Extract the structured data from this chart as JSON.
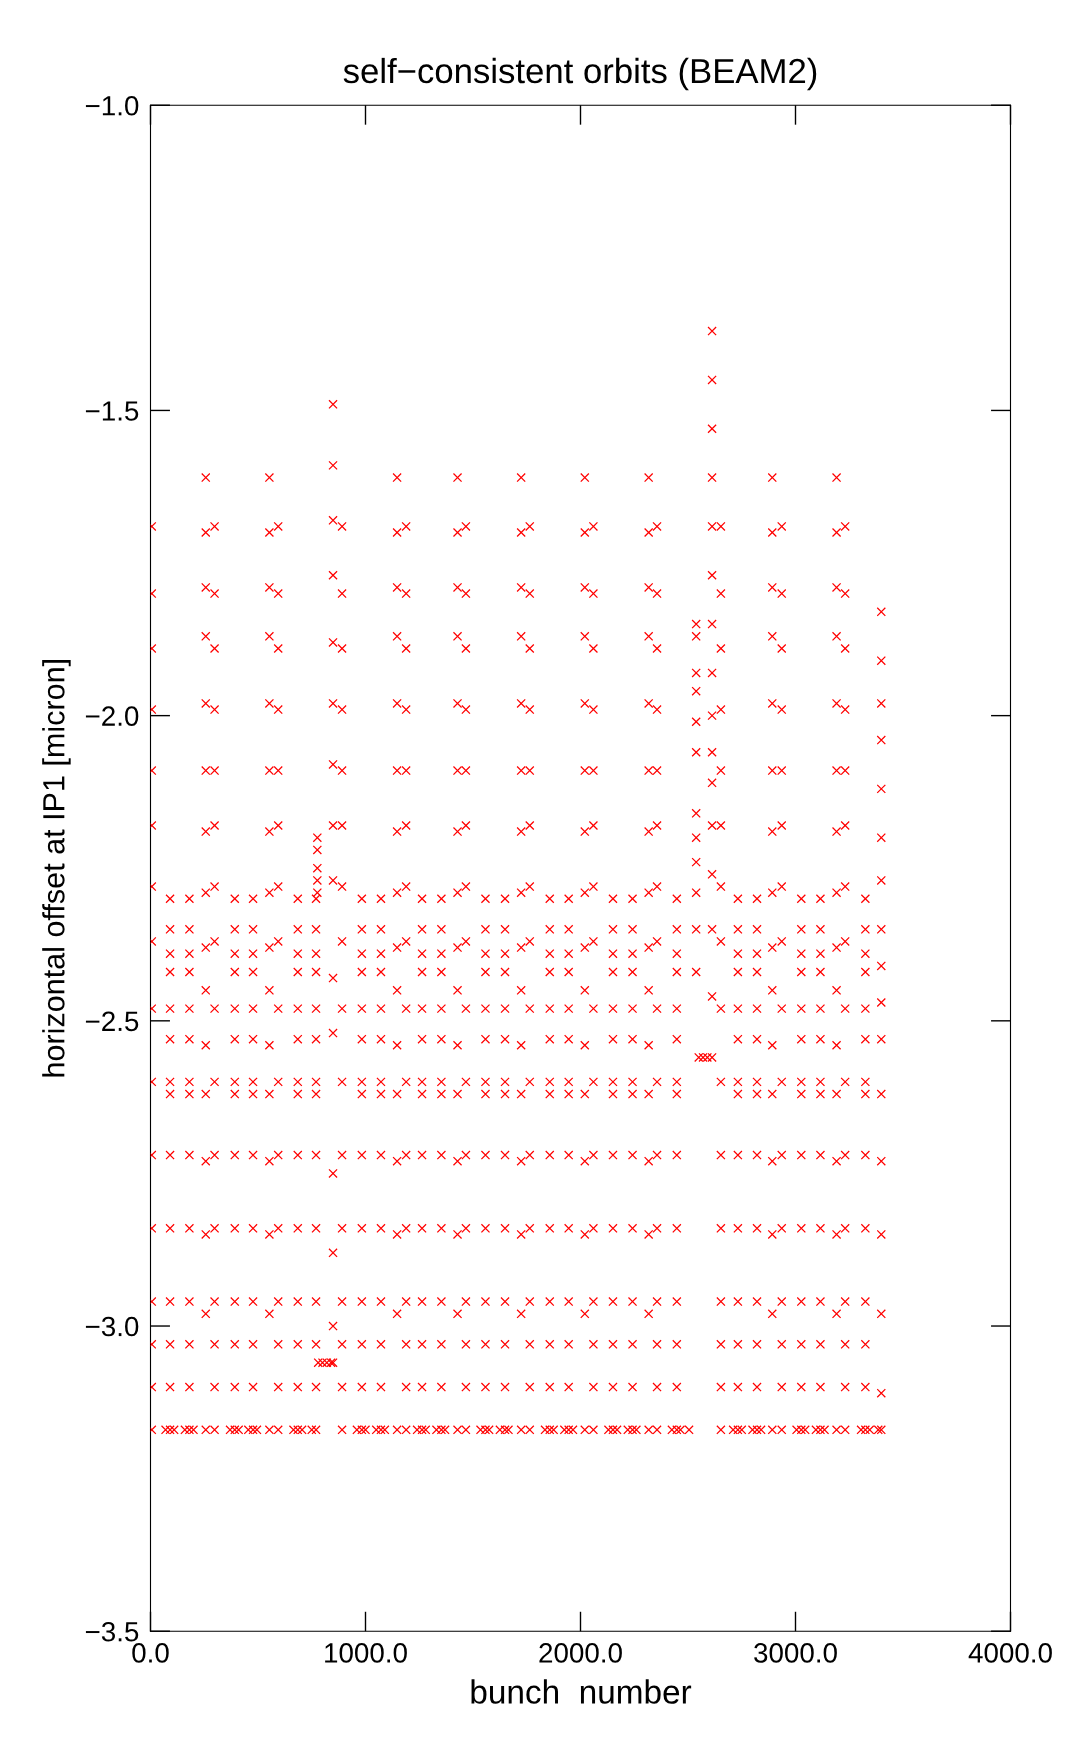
{
  "chart_data": {
    "type": "scatter",
    "title": "self−consistent orbits (BEAM2)",
    "xlabel": "bunch  number",
    "ylabel": "horizontal offset at IP1 [micron]",
    "marker": "cross",
    "xlim": [
      0,
      4000
    ],
    "ylim": [
      -3.5,
      -1.0
    ],
    "xticks": [
      {
        "value": 0,
        "label": "0.0"
      },
      {
        "value": 1000,
        "label": "1000.0"
      },
      {
        "value": 2000,
        "label": "2000.0"
      },
      {
        "value": 3000,
        "label": "3000.0"
      },
      {
        "value": 4000,
        "label": "4000.0"
      }
    ],
    "yticks": [
      {
        "value": -3.5,
        "label": "−3.5"
      },
      {
        "value": -3.0,
        "label": "−3.0"
      },
      {
        "value": -2.5,
        "label": "−2.5"
      },
      {
        "value": -2.0,
        "label": "−2.0"
      },
      {
        "value": -1.5,
        "label": "−1.5"
      },
      {
        "value": -1.0,
        "label": "−1.0"
      }
    ],
    "series": [
      {
        "color": "#ff0000",
        "x": [
          6,
          6,
          6,
          6,
          6,
          6,
          6,
          6,
          6,
          6,
          6,
          6,
          6,
          6,
          6,
          6
        ],
        "values": [
          -1.69,
          -1.8,
          -1.89,
          -1.99,
          -2.09,
          -2.18,
          -2.28,
          -2.37,
          -2.48,
          -2.6,
          -2.72,
          -2.84,
          -2.96,
          -3.03,
          -3.1,
          -3.17
        ]
      },
      {
        "color": "#ff0000",
        "x": [
          257,
          257,
          257,
          257,
          257,
          257,
          257,
          257,
          257,
          257,
          257,
          257,
          257,
          257,
          257,
          257
        ],
        "values": [
          -1.61,
          -1.7,
          -1.79,
          -1.87,
          -1.98,
          -2.09,
          -2.19,
          -2.29,
          -2.38,
          -2.45,
          -2.54,
          -2.62,
          -2.73,
          -2.85,
          -2.98,
          -3.17
        ]
      },
      {
        "color": "#ff0000",
        "x": [
          298,
          298,
          298,
          298,
          298,
          298,
          298,
          298,
          298,
          298,
          298,
          298,
          298,
          298,
          298,
          298
        ],
        "values": [
          -1.69,
          -1.8,
          -1.89,
          -1.99,
          -2.09,
          -2.18,
          -2.28,
          -2.37,
          -2.48,
          -2.6,
          -2.72,
          -2.84,
          -2.96,
          -3.03,
          -3.1,
          -3.17
        ]
      },
      {
        "color": "#ff0000",
        "x": [
          553,
          553,
          553,
          553,
          553,
          553,
          553,
          553,
          553,
          553,
          553,
          553,
          553,
          553,
          553,
          553
        ],
        "values": [
          -1.61,
          -1.7,
          -1.79,
          -1.87,
          -1.98,
          -2.09,
          -2.19,
          -2.29,
          -2.38,
          -2.45,
          -2.54,
          -2.62,
          -2.73,
          -2.85,
          -2.98,
          -3.17
        ]
      },
      {
        "color": "#ff0000",
        "x": [
          594,
          594,
          594,
          594,
          594,
          594,
          594,
          594,
          594,
          594,
          594,
          594,
          594,
          594,
          594,
          594
        ],
        "values": [
          -1.69,
          -1.8,
          -1.89,
          -1.99,
          -2.09,
          -2.18,
          -2.28,
          -2.37,
          -2.48,
          -2.6,
          -2.72,
          -2.84,
          -2.96,
          -3.03,
          -3.1,
          -3.17
        ]
      },
      {
        "color": "#ff0000",
        "x": [
          849,
          849,
          849,
          849,
          849,
          849,
          849,
          849,
          849,
          849,
          849,
          849,
          849,
          849,
          849
        ],
        "values": [
          -1.49,
          -1.59,
          -1.68,
          -1.77,
          -1.88,
          -1.98,
          -2.08,
          -2.18,
          -2.27,
          -2.43,
          -2.52,
          -2.75,
          -2.88,
          -3.0,
          -3.06
        ]
      },
      {
        "color": "#ff0000",
        "x": [
          776,
          776,
          776,
          776,
          776,
          780,
          800,
          820,
          840
        ],
        "values": [
          -2.2,
          -2.22,
          -2.25,
          -2.27,
          -2.29,
          -3.06,
          -3.06,
          -3.06,
          -3.06
        ]
      },
      {
        "color": "#ff0000",
        "x": [
          891,
          891,
          891,
          891,
          891,
          891,
          891,
          891,
          891,
          891,
          891,
          891,
          891,
          891,
          891,
          891
        ],
        "values": [
          -1.69,
          -1.8,
          -1.89,
          -1.99,
          -2.09,
          -2.18,
          -2.28,
          -2.37,
          -2.48,
          -2.6,
          -2.72,
          -2.84,
          -2.96,
          -3.03,
          -3.1,
          -3.17
        ]
      },
      {
        "color": "#ff0000",
        "x": [
          1147,
          1147,
          1147,
          1147,
          1147,
          1147,
          1147,
          1147,
          1147,
          1147,
          1147,
          1147,
          1147,
          1147,
          1147,
          1147
        ],
        "values": [
          -1.61,
          -1.7,
          -1.79,
          -1.87,
          -1.98,
          -2.09,
          -2.19,
          -2.29,
          -2.38,
          -2.45,
          -2.54,
          -2.62,
          -2.73,
          -2.85,
          -2.98,
          -3.17
        ]
      },
      {
        "color": "#ff0000",
        "x": [
          1189,
          1189,
          1189,
          1189,
          1189,
          1189,
          1189,
          1189,
          1189,
          1189,
          1189,
          1189,
          1189,
          1189,
          1189,
          1189
        ],
        "values": [
          -1.69,
          -1.8,
          -1.89,
          -1.99,
          -2.09,
          -2.18,
          -2.28,
          -2.37,
          -2.48,
          -2.6,
          -2.72,
          -2.84,
          -2.96,
          -3.03,
          -3.1,
          -3.17
        ]
      },
      {
        "color": "#ff0000",
        "x": [
          1428,
          1428,
          1428,
          1428,
          1428,
          1428,
          1428,
          1428,
          1428,
          1428,
          1428,
          1428,
          1428,
          1428,
          1428,
          1428
        ],
        "values": [
          -1.61,
          -1.7,
          -1.79,
          -1.87,
          -1.98,
          -2.09,
          -2.19,
          -2.29,
          -2.38,
          -2.45,
          -2.54,
          -2.62,
          -2.73,
          -2.85,
          -2.98,
          -3.17
        ]
      },
      {
        "color": "#ff0000",
        "x": [
          1467,
          1467,
          1467,
          1467,
          1467,
          1467,
          1467,
          1467,
          1467,
          1467,
          1467,
          1467,
          1467,
          1467,
          1467,
          1467
        ],
        "values": [
          -1.69,
          -1.8,
          -1.89,
          -1.99,
          -2.09,
          -2.18,
          -2.28,
          -2.37,
          -2.48,
          -2.6,
          -2.72,
          -2.84,
          -2.96,
          -3.03,
          -3.1,
          -3.17
        ]
      },
      {
        "color": "#ff0000",
        "x": [
          1724,
          1724,
          1724,
          1724,
          1724,
          1724,
          1724,
          1724,
          1724,
          1724,
          1724,
          1724,
          1724,
          1724,
          1724,
          1724
        ],
        "values": [
          -1.61,
          -1.7,
          -1.79,
          -1.87,
          -1.98,
          -2.09,
          -2.19,
          -2.29,
          -2.38,
          -2.45,
          -2.54,
          -2.62,
          -2.73,
          -2.85,
          -2.98,
          -3.17
        ]
      },
      {
        "color": "#ff0000",
        "x": [
          1764,
          1764,
          1764,
          1764,
          1764,
          1764,
          1764,
          1764,
          1764,
          1764,
          1764,
          1764,
          1764,
          1764,
          1764,
          1764
        ],
        "values": [
          -1.69,
          -1.8,
          -1.89,
          -1.99,
          -2.09,
          -2.18,
          -2.28,
          -2.37,
          -2.48,
          -2.6,
          -2.72,
          -2.84,
          -2.96,
          -3.03,
          -3.1,
          -3.17
        ]
      },
      {
        "color": "#ff0000",
        "x": [
          2020,
          2020,
          2020,
          2020,
          2020,
          2020,
          2020,
          2020,
          2020,
          2020,
          2020,
          2020,
          2020,
          2020,
          2020,
          2020
        ],
        "values": [
          -1.61,
          -1.7,
          -1.79,
          -1.87,
          -1.98,
          -2.09,
          -2.19,
          -2.29,
          -2.38,
          -2.45,
          -2.54,
          -2.62,
          -2.73,
          -2.85,
          -2.98,
          -3.17
        ]
      },
      {
        "color": "#ff0000",
        "x": [
          2060,
          2060,
          2060,
          2060,
          2060,
          2060,
          2060,
          2060,
          2060,
          2060,
          2060,
          2060,
          2060,
          2060,
          2060,
          2060
        ],
        "values": [
          -1.69,
          -1.8,
          -1.89,
          -1.99,
          -2.09,
          -2.18,
          -2.28,
          -2.37,
          -2.48,
          -2.6,
          -2.72,
          -2.84,
          -2.96,
          -3.03,
          -3.1,
          -3.17
        ]
      },
      {
        "color": "#ff0000",
        "x": [
          2317,
          2317,
          2317,
          2317,
          2317,
          2317,
          2317,
          2317,
          2317,
          2317,
          2317,
          2317,
          2317,
          2317,
          2317,
          2317
        ],
        "values": [
          -1.61,
          -1.7,
          -1.79,
          -1.87,
          -1.98,
          -2.09,
          -2.19,
          -2.29,
          -2.38,
          -2.45,
          -2.54,
          -2.62,
          -2.73,
          -2.85,
          -2.98,
          -3.17
        ]
      },
      {
        "color": "#ff0000",
        "x": [
          2356,
          2356,
          2356,
          2356,
          2356,
          2356,
          2356,
          2356,
          2356,
          2356,
          2356,
          2356,
          2356,
          2356,
          2356,
          2356
        ],
        "values": [
          -1.69,
          -1.8,
          -1.89,
          -1.99,
          -2.09,
          -2.18,
          -2.28,
          -2.37,
          -2.48,
          -2.6,
          -2.72,
          -2.84,
          -2.96,
          -3.03,
          -3.1,
          -3.17
        ]
      },
      {
        "color": "#ff0000",
        "x": [
          2538,
          2538,
          2538,
          2538,
          2538,
          2538,
          2538,
          2538,
          2538,
          2538,
          2538,
          2538
        ],
        "values": [
          -1.85,
          -1.87,
          -1.93,
          -1.96,
          -2.01,
          -2.06,
          -2.16,
          -2.2,
          -2.24,
          -2.29,
          -2.35,
          -2.42
        ]
      },
      {
        "color": "#ff0000",
        "x": [
          2612,
          2612,
          2612,
          2612,
          2612,
          2612,
          2612,
          2612,
          2612,
          2612,
          2612,
          2612,
          2612,
          2612,
          2612,
          2612,
          2550,
          2570,
          2590
        ],
        "values": [
          -1.37,
          -1.45,
          -1.53,
          -1.61,
          -1.69,
          -1.77,
          -1.85,
          -1.93,
          -2.0,
          -2.06,
          -2.11,
          -2.18,
          -2.26,
          -2.35,
          -2.46,
          -2.56,
          -2.56,
          -2.56,
          -2.56
        ]
      },
      {
        "color": "#ff0000",
        "x": [
          2653,
          2653,
          2653,
          2653,
          2653,
          2653,
          2653,
          2653,
          2653,
          2653,
          2653,
          2653,
          2653,
          2653,
          2653,
          2653
        ],
        "values": [
          -1.69,
          -1.8,
          -1.89,
          -1.99,
          -2.09,
          -2.18,
          -2.28,
          -2.37,
          -2.48,
          -2.6,
          -2.72,
          -2.84,
          -2.96,
          -3.03,
          -3.1,
          -3.17
        ]
      },
      {
        "color": "#ff0000",
        "x": [
          2892,
          2892,
          2892,
          2892,
          2892,
          2892,
          2892,
          2892,
          2892,
          2892,
          2892,
          2892,
          2892,
          2892,
          2892,
          2892
        ],
        "values": [
          -1.61,
          -1.7,
          -1.79,
          -1.87,
          -1.98,
          -2.09,
          -2.19,
          -2.29,
          -2.38,
          -2.45,
          -2.54,
          -2.62,
          -2.73,
          -2.85,
          -2.98,
          -3.17
        ]
      },
      {
        "color": "#ff0000",
        "x": [
          2936,
          2936,
          2936,
          2936,
          2936,
          2936,
          2936,
          2936,
          2936,
          2936,
          2936,
          2936,
          2936,
          2936,
          2936,
          2936
        ],
        "values": [
          -1.69,
          -1.8,
          -1.89,
          -1.99,
          -2.09,
          -2.18,
          -2.28,
          -2.37,
          -2.48,
          -2.6,
          -2.72,
          -2.84,
          -2.96,
          -3.03,
          -3.1,
          -3.17
        ]
      },
      {
        "color": "#ff0000",
        "x": [
          3191,
          3191,
          3191,
          3191,
          3191,
          3191,
          3191,
          3191,
          3191,
          3191,
          3191,
          3191,
          3191,
          3191,
          3191,
          3191
        ],
        "values": [
          -1.61,
          -1.7,
          -1.79,
          -1.87,
          -1.98,
          -2.09,
          -2.19,
          -2.29,
          -2.38,
          -2.45,
          -2.54,
          -2.62,
          -2.73,
          -2.85,
          -2.98,
          -3.17
        ]
      },
      {
        "color": "#ff0000",
        "x": [
          3231,
          3231,
          3231,
          3231,
          3231,
          3231,
          3231,
          3231,
          3231,
          3231,
          3231,
          3231,
          3231,
          3231,
          3231,
          3231
        ],
        "values": [
          -1.69,
          -1.8,
          -1.89,
          -1.99,
          -2.09,
          -2.18,
          -2.28,
          -2.37,
          -2.48,
          -2.6,
          -2.72,
          -2.84,
          -2.96,
          -3.03,
          -3.1,
          -3.17
        ]
      },
      {
        "color": "#ff0000",
        "x": [
          3399,
          3399,
          3399,
          3399,
          3399,
          3399,
          3399,
          3399,
          3399,
          3399,
          3399,
          3399,
          3399,
          3399,
          3399,
          3399,
          3399
        ],
        "values": [
          -1.83,
          -1.91,
          -1.98,
          -2.04,
          -2.12,
          -2.2,
          -2.27,
          -2.35,
          -2.41,
          -2.47,
          -2.53,
          -2.62,
          -2.73,
          -2.85,
          -2.98,
          -3.11,
          -3.17
        ]
      },
      {
        "color": "#ff0000",
        "x": [
          91,
          91,
          91,
          91,
          91,
          91,
          91,
          91,
          91,
          91,
          91,
          91,
          91,
          91,
          70,
          110
        ],
        "values": [
          -2.3,
          -2.35,
          -2.39,
          -2.42,
          -2.48,
          -2.53,
          -2.6,
          -2.62,
          -2.72,
          -2.84,
          -2.96,
          -3.03,
          -3.1,
          -3.17,
          -3.17,
          -3.17
        ]
      },
      {
        "color": "#ff0000",
        "x": [
          181,
          181,
          181,
          181,
          181,
          181,
          181,
          181,
          181,
          181,
          181,
          181,
          181,
          181,
          160,
          200
        ],
        "values": [
          -2.3,
          -2.35,
          -2.39,
          -2.42,
          -2.48,
          -2.53,
          -2.6,
          -2.62,
          -2.72,
          -2.84,
          -2.96,
          -3.03,
          -3.1,
          -3.17,
          -3.17,
          -3.17
        ]
      },
      {
        "color": "#ff0000",
        "x": [
          392,
          392,
          392,
          392,
          392,
          392,
          392,
          392,
          392,
          392,
          392,
          392,
          392,
          392,
          370,
          410
        ],
        "values": [
          -2.3,
          -2.35,
          -2.39,
          -2.42,
          -2.48,
          -2.53,
          -2.6,
          -2.62,
          -2.72,
          -2.84,
          -2.96,
          -3.03,
          -3.1,
          -3.17,
          -3.17,
          -3.17
        ]
      },
      {
        "color": "#ff0000",
        "x": [
          477,
          477,
          477,
          477,
          477,
          477,
          477,
          477,
          477,
          477,
          477,
          477,
          477,
          477,
          455,
          495
        ],
        "values": [
          -2.3,
          -2.35,
          -2.39,
          -2.42,
          -2.48,
          -2.53,
          -2.6,
          -2.62,
          -2.72,
          -2.84,
          -2.96,
          -3.03,
          -3.1,
          -3.17,
          -3.17,
          -3.17
        ]
      },
      {
        "color": "#ff0000",
        "x": [
          685,
          685,
          685,
          685,
          685,
          685,
          685,
          685,
          685,
          685,
          685,
          685,
          685,
          685,
          665,
          705
        ],
        "values": [
          -2.3,
          -2.35,
          -2.39,
          -2.42,
          -2.48,
          -2.53,
          -2.6,
          -2.62,
          -2.72,
          -2.84,
          -2.96,
          -3.03,
          -3.1,
          -3.17,
          -3.17,
          -3.17
        ]
      },
      {
        "color": "#ff0000",
        "x": [
          770,
          770,
          770,
          770,
          770,
          770,
          770,
          770,
          770,
          770,
          770,
          770,
          770,
          770,
          750
        ],
        "values": [
          -2.3,
          -2.35,
          -2.39,
          -2.42,
          -2.48,
          -2.53,
          -2.6,
          -2.62,
          -2.72,
          -2.84,
          -2.96,
          -3.03,
          -3.1,
          -3.17,
          -3.17
        ]
      },
      {
        "color": "#ff0000",
        "x": [
          983,
          983,
          983,
          983,
          983,
          983,
          983,
          983,
          983,
          983,
          983,
          983,
          983,
          983,
          960,
          1000
        ],
        "values": [
          -2.3,
          -2.35,
          -2.39,
          -2.42,
          -2.48,
          -2.53,
          -2.6,
          -2.62,
          -2.72,
          -2.84,
          -2.96,
          -3.03,
          -3.1,
          -3.17,
          -3.17,
          -3.17
        ]
      },
      {
        "color": "#ff0000",
        "x": [
          1072,
          1072,
          1072,
          1072,
          1072,
          1072,
          1072,
          1072,
          1072,
          1072,
          1072,
          1072,
          1072,
          1072,
          1050,
          1090
        ],
        "values": [
          -2.3,
          -2.35,
          -2.39,
          -2.42,
          -2.48,
          -2.53,
          -2.6,
          -2.62,
          -2.72,
          -2.84,
          -2.96,
          -3.03,
          -3.1,
          -3.17,
          -3.17,
          -3.17
        ]
      },
      {
        "color": "#ff0000",
        "x": [
          1263,
          1263,
          1263,
          1263,
          1263,
          1263,
          1263,
          1263,
          1263,
          1263,
          1263,
          1263,
          1263,
          1263,
          1240,
          1280
        ],
        "values": [
          -2.3,
          -2.35,
          -2.39,
          -2.42,
          -2.48,
          -2.53,
          -2.6,
          -2.62,
          -2.72,
          -2.84,
          -2.96,
          -3.03,
          -3.1,
          -3.17,
          -3.17,
          -3.17
        ]
      },
      {
        "color": "#ff0000",
        "x": [
          1353,
          1353,
          1353,
          1353,
          1353,
          1353,
          1353,
          1353,
          1353,
          1353,
          1353,
          1353,
          1353,
          1353,
          1330,
          1370
        ],
        "values": [
          -2.3,
          -2.35,
          -2.39,
          -2.42,
          -2.48,
          -2.53,
          -2.6,
          -2.62,
          -2.72,
          -2.84,
          -2.96,
          -3.03,
          -3.1,
          -3.17,
          -3.17,
          -3.17
        ]
      },
      {
        "color": "#ff0000",
        "x": [
          1558,
          1558,
          1558,
          1558,
          1558,
          1558,
          1558,
          1558,
          1558,
          1558,
          1558,
          1558,
          1558,
          1558,
          1535,
          1575
        ],
        "values": [
          -2.3,
          -2.35,
          -2.39,
          -2.42,
          -2.48,
          -2.53,
          -2.6,
          -2.62,
          -2.72,
          -2.84,
          -2.96,
          -3.03,
          -3.1,
          -3.17,
          -3.17,
          -3.17
        ]
      },
      {
        "color": "#ff0000",
        "x": [
          1649,
          1649,
          1649,
          1649,
          1649,
          1649,
          1649,
          1649,
          1649,
          1649,
          1649,
          1649,
          1649,
          1649,
          1625,
          1665
        ],
        "values": [
          -2.3,
          -2.35,
          -2.39,
          -2.42,
          -2.48,
          -2.53,
          -2.6,
          -2.62,
          -2.72,
          -2.84,
          -2.96,
          -3.03,
          -3.1,
          -3.17,
          -3.17,
          -3.17
        ]
      },
      {
        "color": "#ff0000",
        "x": [
          1857,
          1857,
          1857,
          1857,
          1857,
          1857,
          1857,
          1857,
          1857,
          1857,
          1857,
          1857,
          1857,
          1857,
          1835,
          1875
        ],
        "values": [
          -2.3,
          -2.35,
          -2.39,
          -2.42,
          -2.48,
          -2.53,
          -2.6,
          -2.62,
          -2.72,
          -2.84,
          -2.96,
          -3.03,
          -3.1,
          -3.17,
          -3.17,
          -3.17
        ]
      },
      {
        "color": "#ff0000",
        "x": [
          1945,
          1945,
          1945,
          1945,
          1945,
          1945,
          1945,
          1945,
          1945,
          1945,
          1945,
          1945,
          1945,
          1945,
          1925,
          1965
        ],
        "values": [
          -2.3,
          -2.35,
          -2.39,
          -2.42,
          -2.48,
          -2.53,
          -2.6,
          -2.62,
          -2.72,
          -2.84,
          -2.96,
          -3.03,
          -3.1,
          -3.17,
          -3.17,
          -3.17
        ]
      },
      {
        "color": "#ff0000",
        "x": [
          2151,
          2151,
          2151,
          2151,
          2151,
          2151,
          2151,
          2151,
          2151,
          2151,
          2151,
          2151,
          2151,
          2151,
          2130,
          2170
        ],
        "values": [
          -2.3,
          -2.35,
          -2.39,
          -2.42,
          -2.48,
          -2.53,
          -2.6,
          -2.62,
          -2.72,
          -2.84,
          -2.96,
          -3.03,
          -3.1,
          -3.17,
          -3.17,
          -3.17
        ]
      },
      {
        "color": "#ff0000",
        "x": [
          2242,
          2242,
          2242,
          2242,
          2242,
          2242,
          2242,
          2242,
          2242,
          2242,
          2242,
          2242,
          2242,
          2242,
          2220,
          2260
        ],
        "values": [
          -2.3,
          -2.35,
          -2.39,
          -2.42,
          -2.48,
          -2.53,
          -2.6,
          -2.62,
          -2.72,
          -2.84,
          -2.96,
          -3.03,
          -3.1,
          -3.17,
          -3.17,
          -3.17
        ]
      },
      {
        "color": "#ff0000",
        "x": [
          2448,
          2448,
          2448,
          2448,
          2448,
          2448,
          2448,
          2448,
          2448,
          2448,
          2448,
          2448,
          2448,
          2448,
          2425,
          2465,
          2505
        ],
        "values": [
          -2.3,
          -2.35,
          -2.39,
          -2.42,
          -2.48,
          -2.53,
          -2.6,
          -2.62,
          -2.72,
          -2.84,
          -2.96,
          -3.03,
          -3.1,
          -3.17,
          -3.17,
          -3.17,
          -3.17
        ]
      },
      {
        "color": "#ff0000",
        "x": [
          2732,
          2732,
          2732,
          2732,
          2732,
          2732,
          2732,
          2732,
          2732,
          2732,
          2732,
          2732,
          2732,
          2732,
          2710,
          2750
        ],
        "values": [
          -2.3,
          -2.35,
          -2.39,
          -2.42,
          -2.48,
          -2.53,
          -2.6,
          -2.62,
          -2.72,
          -2.84,
          -2.96,
          -3.03,
          -3.1,
          -3.17,
          -3.17,
          -3.17
        ]
      },
      {
        "color": "#ff0000",
        "x": [
          2821,
          2821,
          2821,
          2821,
          2821,
          2821,
          2821,
          2821,
          2821,
          2821,
          2821,
          2821,
          2821,
          2821,
          2800,
          2840
        ],
        "values": [
          -2.3,
          -2.35,
          -2.39,
          -2.42,
          -2.48,
          -2.53,
          -2.6,
          -2.62,
          -2.72,
          -2.84,
          -2.96,
          -3.03,
          -3.1,
          -3.17,
          -3.17,
          -3.17
        ]
      },
      {
        "color": "#ff0000",
        "x": [
          3027,
          3027,
          3027,
          3027,
          3027,
          3027,
          3027,
          3027,
          3027,
          3027,
          3027,
          3027,
          3027,
          3027,
          3005,
          3045
        ],
        "values": [
          -2.3,
          -2.35,
          -2.39,
          -2.42,
          -2.48,
          -2.53,
          -2.6,
          -2.62,
          -2.72,
          -2.84,
          -2.96,
          -3.03,
          -3.1,
          -3.17,
          -3.17,
          -3.17
        ]
      },
      {
        "color": "#ff0000",
        "x": [
          3116,
          3116,
          3116,
          3116,
          3116,
          3116,
          3116,
          3116,
          3116,
          3116,
          3116,
          3116,
          3116,
          3116,
          3095,
          3135
        ],
        "values": [
          -2.3,
          -2.35,
          -2.39,
          -2.42,
          -2.48,
          -2.53,
          -2.6,
          -2.62,
          -2.72,
          -2.84,
          -2.96,
          -3.03,
          -3.1,
          -3.17,
          -3.17,
          -3.17
        ]
      },
      {
        "color": "#ff0000",
        "x": [
          3325,
          3325,
          3325,
          3325,
          3325,
          3325,
          3325,
          3325,
          3325,
          3325,
          3325,
          3325,
          3325,
          3325,
          3305,
          3345,
          3385
        ],
        "values": [
          -2.3,
          -2.35,
          -2.39,
          -2.42,
          -2.48,
          -2.53,
          -2.6,
          -2.62,
          -2.72,
          -2.84,
          -2.96,
          -3.03,
          -3.1,
          -3.17,
          -3.17,
          -3.17,
          -3.17
        ]
      }
    ]
  }
}
